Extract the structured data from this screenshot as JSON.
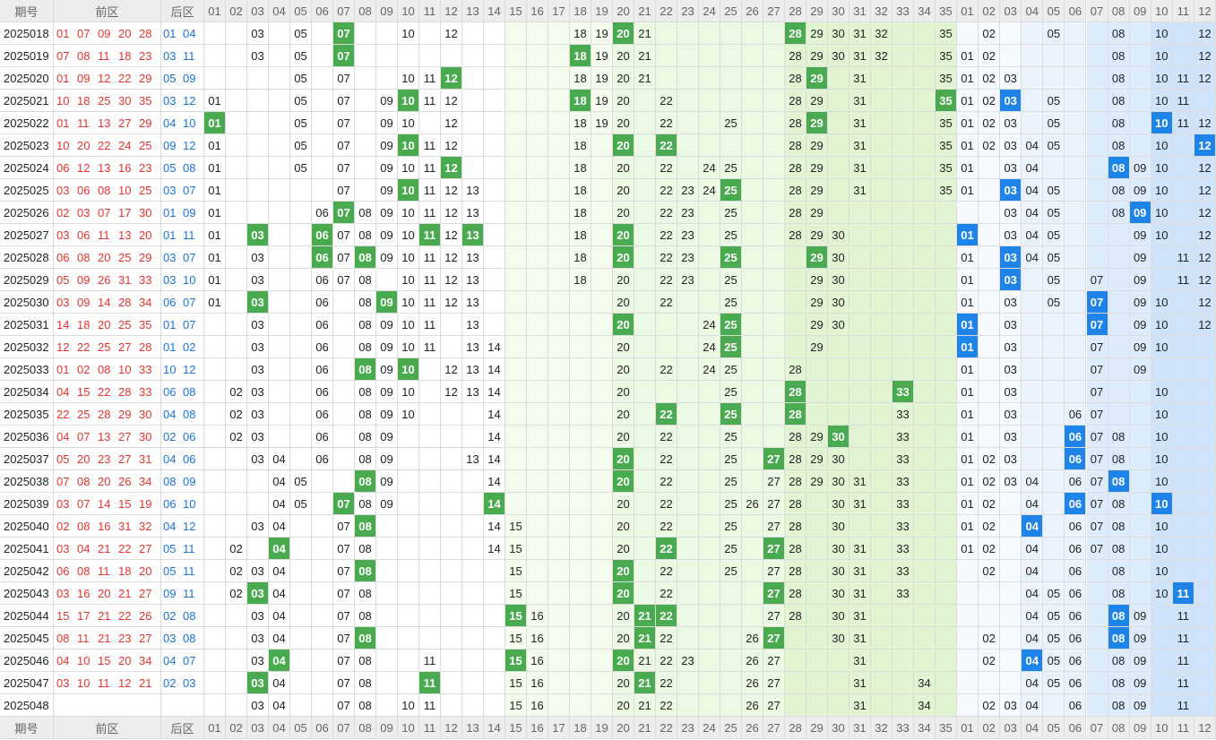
{
  "header": {
    "period": "期号",
    "front": "前区",
    "back": "后区"
  },
  "front_columns": [
    "01",
    "02",
    "03",
    "04",
    "05",
    "06",
    "07",
    "08",
    "09",
    "10",
    "11",
    "12",
    "13",
    "14",
    "15",
    "16",
    "17",
    "18",
    "19",
    "20",
    "21",
    "22",
    "23",
    "24",
    "25",
    "26",
    "27",
    "28",
    "29",
    "30",
    "31",
    "32",
    "33",
    "34",
    "35"
  ],
  "back_columns": [
    "01",
    "02",
    "03",
    "04",
    "05",
    "06",
    "07",
    "08",
    "09",
    "10",
    "11",
    "12"
  ],
  "colors": {
    "front_hit": "#4aaa4f",
    "back_hit": "#1f84ea",
    "front_number_text": "#e8322d",
    "back_number_text": "#1a73d9",
    "front_bands": [
      "#ffffff",
      "#f4fcee",
      "#ecf9e3",
      "#e1f5d3"
    ],
    "back_bands": [
      "#f6faff",
      "#eaf3fd",
      "#dcecfc",
      "#cfe3fb"
    ]
  },
  "rows": [
    {
      "period": "2025018",
      "front": [
        "01",
        "07",
        "09",
        "20",
        "28"
      ],
      "back": [
        "01",
        "04"
      ],
      "front_hits": [
        "07",
        "20",
        "28"
      ],
      "back_hits": [],
      "front_miss": [
        "03",
        "05",
        "10",
        "12",
        "18",
        "19",
        "21",
        "29",
        "30",
        "31",
        "32",
        "35"
      ],
      "back_miss": [
        "02",
        "05",
        "08",
        "10",
        "12"
      ]
    },
    {
      "period": "2025019",
      "front": [
        "07",
        "08",
        "11",
        "18",
        "23"
      ],
      "back": [
        "03",
        "11"
      ],
      "front_hits": [
        "07",
        "18"
      ],
      "back_hits": [],
      "front_miss": [
        "03",
        "05",
        "19",
        "20",
        "21",
        "28",
        "29",
        "30",
        "31",
        "32",
        "35"
      ],
      "back_miss": [
        "01",
        "02",
        "08",
        "10",
        "12"
      ]
    },
    {
      "period": "2025020",
      "front": [
        "01",
        "09",
        "12",
        "22",
        "29"
      ],
      "back": [
        "05",
        "09"
      ],
      "front_hits": [
        "12",
        "29"
      ],
      "back_hits": [],
      "front_miss": [
        "05",
        "07",
        "10",
        "11",
        "18",
        "19",
        "20",
        "21",
        "28",
        "31",
        "35"
      ],
      "back_miss": [
        "01",
        "02",
        "03",
        "08",
        "10",
        "11",
        "12"
      ]
    },
    {
      "period": "2025021",
      "front": [
        "10",
        "18",
        "25",
        "30",
        "35"
      ],
      "back": [
        "03",
        "12"
      ],
      "front_hits": [
        "10",
        "18",
        "35"
      ],
      "back_hits": [
        "03"
      ],
      "front_miss": [
        "01",
        "05",
        "07",
        "09",
        "11",
        "12",
        "19",
        "20",
        "22",
        "28",
        "29",
        "31"
      ],
      "back_miss": [
        "01",
        "02",
        "05",
        "08",
        "10",
        "11"
      ]
    },
    {
      "period": "2025022",
      "front": [
        "01",
        "11",
        "13",
        "27",
        "29"
      ],
      "back": [
        "04",
        "10"
      ],
      "front_hits": [
        "01",
        "29"
      ],
      "back_hits": [
        "10"
      ],
      "front_miss": [
        "05",
        "07",
        "09",
        "10",
        "12",
        "18",
        "19",
        "20",
        "22",
        "25",
        "28",
        "31",
        "35"
      ],
      "back_miss": [
        "01",
        "02",
        "03",
        "05",
        "08",
        "11",
        "12"
      ]
    },
    {
      "period": "2025023",
      "front": [
        "10",
        "20",
        "22",
        "24",
        "25"
      ],
      "back": [
        "09",
        "12"
      ],
      "front_hits": [
        "10",
        "20",
        "22"
      ],
      "back_hits": [
        "12"
      ],
      "front_miss": [
        "01",
        "05",
        "07",
        "09",
        "11",
        "12",
        "18",
        "28",
        "29",
        "31",
        "35"
      ],
      "back_miss": [
        "01",
        "02",
        "03",
        "04",
        "05",
        "08",
        "10"
      ]
    },
    {
      "period": "2025024",
      "front": [
        "06",
        "12",
        "13",
        "16",
        "23"
      ],
      "back": [
        "05",
        "08"
      ],
      "front_hits": [
        "12"
      ],
      "back_hits": [
        "08"
      ],
      "front_miss": [
        "01",
        "05",
        "07",
        "09",
        "10",
        "11",
        "18",
        "20",
        "22",
        "24",
        "25",
        "28",
        "29",
        "31",
        "35"
      ],
      "back_miss": [
        "01",
        "03",
        "04",
        "09",
        "10",
        "12"
      ]
    },
    {
      "period": "2025025",
      "front": [
        "03",
        "06",
        "08",
        "10",
        "25"
      ],
      "back": [
        "03",
        "07"
      ],
      "front_hits": [
        "10",
        "25"
      ],
      "back_hits": [
        "03"
      ],
      "front_miss": [
        "01",
        "07",
        "09",
        "11",
        "12",
        "13",
        "18",
        "20",
        "22",
        "23",
        "24",
        "28",
        "29",
        "31",
        "35"
      ],
      "back_miss": [
        "01",
        "04",
        "05",
        "08",
        "09",
        "10",
        "12"
      ]
    },
    {
      "period": "2025026",
      "front": [
        "02",
        "03",
        "07",
        "17",
        "30"
      ],
      "back": [
        "01",
        "09"
      ],
      "front_hits": [
        "07"
      ],
      "back_hits": [
        "09"
      ],
      "front_miss": [
        "01",
        "06",
        "08",
        "09",
        "10",
        "11",
        "12",
        "13",
        "18",
        "20",
        "22",
        "23",
        "25",
        "28",
        "29"
      ],
      "back_miss": [
        "03",
        "04",
        "05",
        "08",
        "10",
        "12"
      ]
    },
    {
      "period": "2025027",
      "front": [
        "03",
        "06",
        "11",
        "13",
        "20"
      ],
      "back": [
        "01",
        "11"
      ],
      "front_hits": [
        "03",
        "06",
        "11",
        "13",
        "20"
      ],
      "back_hits": [
        "01"
      ],
      "front_miss": [
        "01",
        "07",
        "08",
        "09",
        "10",
        "12",
        "18",
        "22",
        "23",
        "25",
        "28",
        "29",
        "30"
      ],
      "back_miss": [
        "03",
        "04",
        "05",
        "09",
        "10",
        "12"
      ]
    },
    {
      "period": "2025028",
      "front": [
        "06",
        "08",
        "20",
        "25",
        "29"
      ],
      "back": [
        "03",
        "07"
      ],
      "front_hits": [
        "06",
        "08",
        "20",
        "25",
        "29"
      ],
      "back_hits": [
        "03"
      ],
      "front_miss": [
        "01",
        "03",
        "07",
        "09",
        "10",
        "11",
        "12",
        "13",
        "18",
        "22",
        "23",
        "30"
      ],
      "back_miss": [
        "01",
        "04",
        "05",
        "09",
        "11",
        "12"
      ]
    },
    {
      "period": "2025029",
      "front": [
        "05",
        "09",
        "26",
        "31",
        "33"
      ],
      "back": [
        "03",
        "10"
      ],
      "front_hits": [],
      "back_hits": [
        "03"
      ],
      "front_miss": [
        "01",
        "03",
        "06",
        "07",
        "08",
        "10",
        "11",
        "12",
        "13",
        "18",
        "20",
        "22",
        "23",
        "25",
        "29",
        "30"
      ],
      "back_miss": [
        "01",
        "05",
        "07",
        "09",
        "11",
        "12"
      ]
    },
    {
      "period": "2025030",
      "front": [
        "03",
        "09",
        "14",
        "28",
        "34"
      ],
      "back": [
        "06",
        "07"
      ],
      "front_hits": [
        "03",
        "09"
      ],
      "back_hits": [
        "07"
      ],
      "front_miss": [
        "01",
        "06",
        "08",
        "10",
        "11",
        "12",
        "13",
        "20",
        "22",
        "25",
        "29",
        "30"
      ],
      "back_miss": [
        "01",
        "03",
        "05",
        "09",
        "10",
        "12"
      ]
    },
    {
      "period": "2025031",
      "front": [
        "14",
        "18",
        "20",
        "25",
        "35"
      ],
      "back": [
        "01",
        "07"
      ],
      "front_hits": [
        "20",
        "25"
      ],
      "back_hits": [
        "01",
        "07"
      ],
      "front_miss": [
        "03",
        "06",
        "08",
        "09",
        "10",
        "11",
        "13",
        "24",
        "29",
        "30"
      ],
      "back_miss": [
        "03",
        "09",
        "10",
        "12"
      ]
    },
    {
      "period": "2025032",
      "front": [
        "12",
        "22",
        "25",
        "27",
        "28"
      ],
      "back": [
        "01",
        "02"
      ],
      "front_hits": [
        "25"
      ],
      "back_hits": [
        "01"
      ],
      "front_miss": [
        "03",
        "06",
        "08",
        "09",
        "10",
        "11",
        "13",
        "14",
        "20",
        "24",
        "29"
      ],
      "back_miss": [
        "03",
        "07",
        "09",
        "10"
      ]
    },
    {
      "period": "2025033",
      "front": [
        "01",
        "02",
        "08",
        "10",
        "33"
      ],
      "back": [
        "10",
        "12"
      ],
      "front_hits": [
        "08",
        "10"
      ],
      "back_hits": [],
      "front_miss": [
        "03",
        "06",
        "09",
        "12",
        "13",
        "14",
        "20",
        "22",
        "24",
        "25",
        "28"
      ],
      "back_miss": [
        "01",
        "03",
        "07",
        "09"
      ]
    },
    {
      "period": "2025034",
      "front": [
        "04",
        "15",
        "22",
        "28",
        "33"
      ],
      "back": [
        "06",
        "08"
      ],
      "front_hits": [
        "28",
        "33"
      ],
      "back_hits": [],
      "front_miss": [
        "02",
        "03",
        "06",
        "08",
        "09",
        "10",
        "12",
        "13",
        "14",
        "20",
        "25"
      ],
      "back_miss": [
        "01",
        "03",
        "07",
        "10"
      ]
    },
    {
      "period": "2025035",
      "front": [
        "22",
        "25",
        "28",
        "29",
        "30"
      ],
      "back": [
        "04",
        "08"
      ],
      "front_hits": [
        "22",
        "25",
        "28"
      ],
      "back_hits": [],
      "front_miss": [
        "02",
        "03",
        "06",
        "08",
        "09",
        "10",
        "14",
        "20",
        "33"
      ],
      "back_miss": [
        "01",
        "03",
        "06",
        "07",
        "10"
      ]
    },
    {
      "period": "2025036",
      "front": [
        "04",
        "07",
        "13",
        "27",
        "30"
      ],
      "back": [
        "02",
        "06"
      ],
      "front_hits": [
        "30"
      ],
      "back_hits": [
        "06"
      ],
      "front_miss": [
        "02",
        "03",
        "06",
        "08",
        "09",
        "14",
        "20",
        "22",
        "25",
        "28",
        "29",
        "33"
      ],
      "back_miss": [
        "01",
        "03",
        "07",
        "08",
        "10"
      ]
    },
    {
      "period": "2025037",
      "front": [
        "05",
        "20",
        "23",
        "27",
        "31"
      ],
      "back": [
        "04",
        "06"
      ],
      "front_hits": [
        "20",
        "27"
      ],
      "back_hits": [
        "06"
      ],
      "front_miss": [
        "03",
        "04",
        "06",
        "08",
        "09",
        "13",
        "14",
        "22",
        "25",
        "28",
        "29",
        "30",
        "33"
      ],
      "back_miss": [
        "01",
        "02",
        "03",
        "07",
        "08",
        "10"
      ]
    },
    {
      "period": "2025038",
      "front": [
        "07",
        "08",
        "20",
        "26",
        "34"
      ],
      "back": [
        "08",
        "09"
      ],
      "front_hits": [
        "08",
        "20"
      ],
      "back_hits": [
        "08"
      ],
      "front_miss": [
        "04",
        "05",
        "09",
        "14",
        "22",
        "25",
        "27",
        "28",
        "29",
        "30",
        "31",
        "33"
      ],
      "back_miss": [
        "01",
        "02",
        "03",
        "04",
        "06",
        "07",
        "10"
      ]
    },
    {
      "period": "2025039",
      "front": [
        "03",
        "07",
        "14",
        "15",
        "19"
      ],
      "back": [
        "06",
        "10"
      ],
      "front_hits": [
        "07",
        "14"
      ],
      "back_hits": [
        "06",
        "10"
      ],
      "front_miss": [
        "04",
        "05",
        "08",
        "09",
        "20",
        "22",
        "25",
        "26",
        "27",
        "28",
        "30",
        "31",
        "33"
      ],
      "back_miss": [
        "01",
        "02",
        "04",
        "07",
        "08"
      ]
    },
    {
      "period": "2025040",
      "front": [
        "02",
        "08",
        "16",
        "31",
        "32"
      ],
      "back": [
        "04",
        "12"
      ],
      "front_hits": [
        "08"
      ],
      "back_hits": [
        "04"
      ],
      "front_miss": [
        "03",
        "04",
        "07",
        "14",
        "15",
        "20",
        "22",
        "25",
        "27",
        "28",
        "30",
        "33"
      ],
      "back_miss": [
        "01",
        "02",
        "06",
        "07",
        "08",
        "10"
      ]
    },
    {
      "period": "2025041",
      "front": [
        "03",
        "04",
        "21",
        "22",
        "27"
      ],
      "back": [
        "05",
        "11"
      ],
      "front_hits": [
        "04",
        "22",
        "27"
      ],
      "back_hits": [],
      "front_miss": [
        "02",
        "07",
        "08",
        "14",
        "15",
        "20",
        "25",
        "28",
        "30",
        "31",
        "33"
      ],
      "back_miss": [
        "01",
        "02",
        "04",
        "06",
        "07",
        "08",
        "10"
      ]
    },
    {
      "period": "2025042",
      "front": [
        "06",
        "08",
        "11",
        "18",
        "20"
      ],
      "back": [
        "05",
        "11"
      ],
      "front_hits": [
        "08",
        "20"
      ],
      "back_hits": [],
      "front_miss": [
        "02",
        "03",
        "04",
        "07",
        "15",
        "22",
        "25",
        "27",
        "28",
        "30",
        "31",
        "33"
      ],
      "back_miss": [
        "02",
        "04",
        "06",
        "08",
        "10"
      ]
    },
    {
      "period": "2025043",
      "front": [
        "03",
        "16",
        "20",
        "21",
        "27"
      ],
      "back": [
        "09",
        "11"
      ],
      "front_hits": [
        "03",
        "20",
        "27"
      ],
      "back_hits": [
        "11"
      ],
      "front_miss": [
        "02",
        "04",
        "07",
        "08",
        "15",
        "22",
        "28",
        "30",
        "31",
        "33"
      ],
      "back_miss": [
        "04",
        "05",
        "06",
        "08",
        "10"
      ]
    },
    {
      "period": "2025044",
      "front": [
        "15",
        "17",
        "21",
        "22",
        "26"
      ],
      "back": [
        "02",
        "08"
      ],
      "front_hits": [
        "15",
        "21",
        "22"
      ],
      "back_hits": [
        "08"
      ],
      "front_miss": [
        "03",
        "04",
        "07",
        "08",
        "16",
        "20",
        "27",
        "28",
        "30",
        "31"
      ],
      "back_miss": [
        "04",
        "05",
        "06",
        "09",
        "11"
      ]
    },
    {
      "period": "2025045",
      "front": [
        "08",
        "11",
        "21",
        "23",
        "27"
      ],
      "back": [
        "03",
        "08"
      ],
      "front_hits": [
        "08",
        "21",
        "27"
      ],
      "back_hits": [
        "08"
      ],
      "front_miss": [
        "03",
        "04",
        "07",
        "15",
        "16",
        "20",
        "22",
        "26",
        "30",
        "31"
      ],
      "back_miss": [
        "02",
        "04",
        "05",
        "06",
        "09",
        "11"
      ]
    },
    {
      "period": "2025046",
      "front": [
        "04",
        "10",
        "15",
        "20",
        "34"
      ],
      "back": [
        "04",
        "07"
      ],
      "front_hits": [
        "04",
        "15",
        "20"
      ],
      "back_hits": [
        "04"
      ],
      "front_miss": [
        "03",
        "07",
        "08",
        "11",
        "16",
        "21",
        "22",
        "23",
        "26",
        "27",
        "31"
      ],
      "back_miss": [
        "02",
        "05",
        "06",
        "08",
        "09",
        "11"
      ]
    },
    {
      "period": "2025047",
      "front": [
        "03",
        "10",
        "11",
        "12",
        "21"
      ],
      "back": [
        "02",
        "03"
      ],
      "front_hits": [
        "03",
        "11",
        "21"
      ],
      "back_hits": [],
      "front_miss": [
        "04",
        "07",
        "08",
        "15",
        "16",
        "20",
        "22",
        "26",
        "27",
        "31",
        "34"
      ],
      "back_miss": [
        "04",
        "05",
        "06",
        "08",
        "09",
        "11"
      ]
    },
    {
      "period": "2025048",
      "front": [],
      "back": [],
      "front_hits": [],
      "back_hits": [],
      "front_miss": [
        "03",
        "04",
        "07",
        "08",
        "10",
        "11",
        "15",
        "16",
        "20",
        "21",
        "22",
        "26",
        "27",
        "31",
        "34"
      ],
      "back_miss": [
        "02",
        "03",
        "04",
        "06",
        "08",
        "09",
        "11"
      ]
    }
  ]
}
